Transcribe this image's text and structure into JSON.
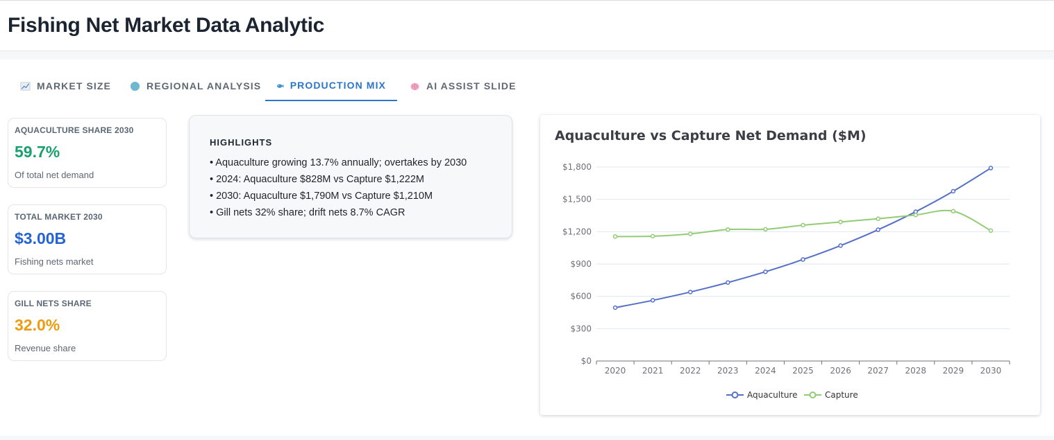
{
  "header": {
    "title": "Fishing Net Market Data Analytic"
  },
  "tabs": [
    {
      "label": "MARKET SIZE",
      "icon": "chart-increasing-icon",
      "active": false
    },
    {
      "label": "REGIONAL ANALYSIS",
      "icon": "globe-icon",
      "active": false
    },
    {
      "label": "PRODUCTION MIX",
      "icon": "fish-icon",
      "active": true
    },
    {
      "label": "AI ASSIST SLIDE",
      "icon": "brain-icon",
      "active": false
    }
  ],
  "kpis": [
    {
      "label": "AQUACULTURE SHARE 2030",
      "value": "59.7%",
      "sub": "Of total net demand",
      "color": "#1aa06d"
    },
    {
      "label": "TOTAL MARKET 2030",
      "value": "$3.00B",
      "sub": "Fishing nets market",
      "color": "#2462d6"
    },
    {
      "label": "GILL NETS SHARE",
      "value": "32.0%",
      "sub": "Revenue share",
      "color": "#ef9b0f"
    }
  ],
  "highlights": {
    "title": "HIGHLIGHTS",
    "items": [
      "• Aquaculture growing 13.7% annually; overtakes by 2030",
      "• 2024: Aquaculture $828M vs Capture $1,222M",
      "• 2030: Aquaculture $1,790M vs Capture $1,210M",
      "• Gill nets 32% share; drift nets 8.7% CAGR"
    ]
  },
  "chart_data": {
    "type": "line",
    "title": "Aquaculture vs Capture Net Demand ($M)",
    "xlabel": "",
    "ylabel": "",
    "x": [
      "2020",
      "2021",
      "2022",
      "2023",
      "2024",
      "2025",
      "2026",
      "2027",
      "2028",
      "2029",
      "2030"
    ],
    "ylim": [
      0,
      1800
    ],
    "yticks": [
      "$0",
      "$300",
      "$600",
      "$900",
      "$1,200",
      "$1,500",
      "$1,800"
    ],
    "grid": true,
    "legend": "bottom",
    "series": [
      {
        "name": "Aquaculture",
        "color": "#5470c6",
        "values": [
          495,
          563,
          640,
          728,
          828,
          942,
          1071,
          1218,
          1385,
          1575,
          1790
        ]
      },
      {
        "name": "Capture",
        "color": "#91cc75",
        "values": [
          1155,
          1158,
          1180,
          1220,
          1222,
          1260,
          1290,
          1320,
          1355,
          1390,
          1210
        ]
      }
    ]
  }
}
